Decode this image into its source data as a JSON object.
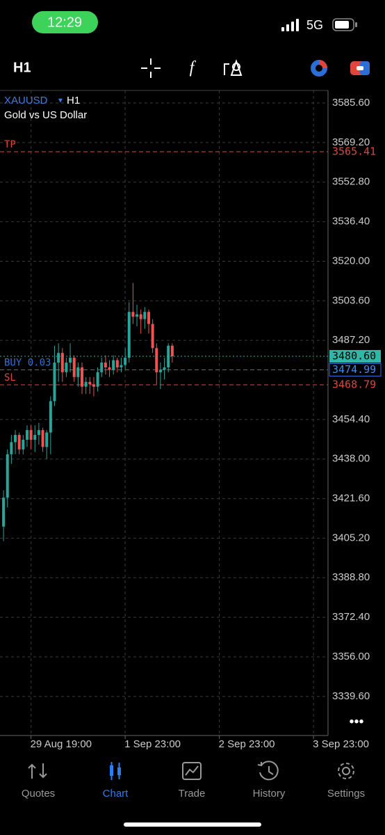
{
  "status_bar": {
    "time": "12:29",
    "network": "5G"
  },
  "toolbar": {
    "timeframe": "H1"
  },
  "chart_data": {
    "type": "candlestick",
    "symbol": "XAUUSD",
    "timeframe": "H1",
    "subtitle": "Gold vs US Dollar",
    "open": [
      3410,
      3422,
      3440,
      3445,
      3448,
      3442,
      3446,
      3450,
      3446,
      3448,
      3450,
      3443,
      3449,
      3462,
      3478,
      3482,
      3474,
      3478,
      3480,
      3472,
      3476,
      3468,
      3470,
      3469,
      3468,
      3474,
      3478,
      3476,
      3475,
      3479,
      3476,
      3477,
      3480,
      3499,
      3497,
      3498,
      3496,
      3499,
      3494,
      3484,
      3474,
      3475,
      3476,
      3485
    ],
    "high": [
      3425,
      3442,
      3448,
      3450,
      3449,
      3448,
      3452,
      3452,
      3452,
      3453,
      3451,
      3450,
      3464,
      3485,
      3486,
      3484,
      3480,
      3486,
      3481,
      3478,
      3478,
      3472,
      3472,
      3472,
      3476,
      3480,
      3481,
      3479,
      3481,
      3480,
      3480,
      3484,
      3503,
      3511,
      3502,
      3500,
      3501,
      3500,
      3496,
      3486,
      3478,
      3480,
      3486,
      3486
    ],
    "low": [
      3404,
      3418,
      3436,
      3440,
      3440,
      3440,
      3443,
      3442,
      3441,
      3444,
      3441,
      3438,
      3440,
      3460,
      3470,
      3470,
      3472,
      3474,
      3470,
      3468,
      3465,
      3465,
      3465,
      3464,
      3466,
      3472,
      3473,
      3472,
      3473,
      3474,
      3474,
      3475,
      3478,
      3494,
      3493,
      3490,
      3492,
      3490,
      3482,
      3469,
      3467,
      3471,
      3474,
      3478
    ],
    "close": [
      3422,
      3440,
      3445,
      3448,
      3442,
      3446,
      3450,
      3446,
      3448,
      3450,
      3443,
      3449,
      3462,
      3478,
      3482,
      3474,
      3478,
      3480,
      3472,
      3476,
      3468,
      3470,
      3469,
      3468,
      3474,
      3478,
      3476,
      3475,
      3479,
      3476,
      3477,
      3480,
      3499,
      3497,
      3498,
      3496,
      3499,
      3494,
      3484,
      3474,
      3475,
      3476,
      3485,
      3480.6
    ],
    "up_color": "#26a69a",
    "down_color": "#ef5350",
    "xlim": [
      -0.9,
      82.7
    ],
    "xticks": [
      {
        "value": 7,
        "label": "29 Aug 19:00"
      },
      {
        "value": 31,
        "label": "1 Sep 23:00"
      },
      {
        "value": 55,
        "label": "2 Sep 23:00"
      },
      {
        "value": 79,
        "label": "3 Sep 23:00"
      }
    ],
    "ylim": [
      3323.4,
      3590.8
    ],
    "yticks": [
      {
        "value": 3585.6,
        "label": "3585.60"
      },
      {
        "value": 3569.2,
        "label": "3569.20"
      },
      {
        "value": 3552.8,
        "label": "3552.80"
      },
      {
        "value": 3536.4,
        "label": "3536.40"
      },
      {
        "value": 3520,
        "label": "3520.00"
      },
      {
        "value": 3503.6,
        "label": "3503.60"
      },
      {
        "value": 3487.2,
        "label": "3487.20"
      },
      {
        "value": 3454.4,
        "label": "3454.40"
      },
      {
        "value": 3438,
        "label": "3438.00"
      },
      {
        "value": 3421.6,
        "label": "3421.60"
      },
      {
        "value": 3405.2,
        "label": "3405.20"
      },
      {
        "value": 3388.8,
        "label": "3388.80"
      },
      {
        "value": 3372.4,
        "label": "3372.40"
      },
      {
        "value": 3356,
        "label": "3356.00"
      },
      {
        "value": 3339.6,
        "label": "3339.60"
      }
    ],
    "grid": true,
    "price_lines": [
      {
        "name": "TP",
        "value": 3565.41,
        "color": "#e0443a"
      },
      {
        "name": "BUY 0.03",
        "value": 3474.99,
        "color": "#2f6fd6"
      },
      {
        "name": "SL",
        "value": 3468.79,
        "color": "#e0443a"
      }
    ],
    "last_price": {
      "value": 3480.6,
      "label": "3480.60",
      "color": "#2fb7a8"
    }
  },
  "nav": {
    "items": [
      "Quotes",
      "Chart",
      "Trade",
      "History",
      "Settings"
    ],
    "active": "Chart"
  }
}
